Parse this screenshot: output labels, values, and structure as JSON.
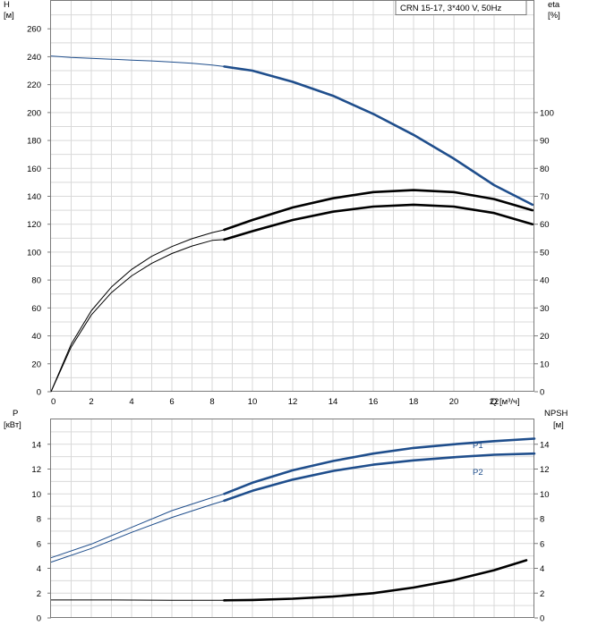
{
  "chart_data": [
    {
      "type": "line",
      "panel": "top",
      "title": "CRN 15-17, 3*400 V, 50Hz",
      "xlabel": "Q [м³/ч]",
      "ylabel_left": [
        "H",
        "[м]"
      ],
      "ylabel_right": [
        "eta",
        "[%]"
      ],
      "xlim": [
        0,
        24
      ],
      "ylim_left": [
        0,
        280
      ],
      "ylim_right": [
        0,
        140
      ],
      "x_ticks": [
        "0",
        "2",
        "4",
        "6",
        "8",
        "10",
        "12",
        "14",
        "16",
        "18",
        "20",
        "22"
      ],
      "y_ticks_left": [
        "0",
        "20",
        "40",
        "60",
        "80",
        "100",
        "120",
        "140",
        "160",
        "180",
        "200",
        "220",
        "240",
        "260"
      ],
      "y_ticks_right": [
        "0",
        "10",
        "20",
        "30",
        "40",
        "50",
        "60",
        "70",
        "80",
        "90",
        "100"
      ],
      "grid": true,
      "series": [
        {
          "id": "H",
          "axis": "left",
          "color": "#1f4e8c",
          "thin_x": [
            0,
            1,
            2,
            3,
            4,
            5,
            6,
            7,
            8,
            8.6
          ],
          "thin_y": [
            240.5,
            239.5,
            238.8,
            238.2,
            237.6,
            237,
            236.2,
            235.3,
            234,
            233
          ],
          "bold_x": [
            8.6,
            10,
            12,
            14,
            16,
            18,
            20,
            22,
            23.9
          ],
          "bold_y": [
            233,
            230,
            222,
            212,
            199,
            184,
            167,
            148,
            134
          ]
        },
        {
          "id": "eta_upper",
          "axis": "right",
          "color": "#000000",
          "thin_x": [
            0,
            1,
            2,
            3,
            4,
            5,
            6,
            7,
            8,
            8.6
          ],
          "thin_y": [
            0,
            17,
            29,
            37.5,
            43.8,
            48.5,
            52,
            54.8,
            57,
            58
          ],
          "bold_x": [
            8.6,
            10,
            12,
            14,
            16,
            18,
            20,
            22,
            23.9
          ],
          "bold_y": [
            58,
            61.5,
            66,
            69.3,
            71.5,
            72.2,
            71.5,
            69,
            65
          ]
        },
        {
          "id": "eta_lower",
          "axis": "right",
          "color": "#000000",
          "thin_x": [
            0,
            1,
            2,
            3,
            4,
            5,
            6,
            7,
            8,
            8.6
          ],
          "thin_y": [
            0,
            16,
            27.5,
            35.5,
            41.5,
            46,
            49.5,
            52.2,
            54.2,
            54.5
          ],
          "bold_x": [
            8.6,
            10,
            12,
            14,
            16,
            18,
            20,
            22,
            23.9
          ],
          "bold_y": [
            54.5,
            57.5,
            61.5,
            64.5,
            66.3,
            67,
            66.3,
            64,
            60
          ]
        }
      ]
    },
    {
      "type": "line",
      "panel": "bottom",
      "ylabel_left": [
        "P",
        "[кВт]"
      ],
      "ylabel_right": [
        "NPSH",
        "[м]"
      ],
      "xlim": [
        0,
        24
      ],
      "ylim_left": [
        0,
        16
      ],
      "ylim_right": [
        0,
        16
      ],
      "y_ticks_left": [
        "0",
        "2",
        "4",
        "6",
        "8",
        "10",
        "12",
        "14"
      ],
      "y_ticks_right": [
        "0",
        "2",
        "4",
        "6",
        "8",
        "10",
        "12",
        "14"
      ],
      "grid": true,
      "series": [
        {
          "id": "P1",
          "name": "P1",
          "axis": "left",
          "color": "#1f4e8c",
          "thin_x": [
            0,
            2,
            4,
            6,
            8,
            8.6
          ],
          "thin_y": [
            4.85,
            5.95,
            7.3,
            8.65,
            9.7,
            10
          ],
          "bold_x": [
            8.6,
            10,
            12,
            14,
            16,
            18,
            20,
            22,
            24
          ],
          "bold_y": [
            10,
            10.9,
            11.9,
            12.65,
            13.25,
            13.7,
            14,
            14.25,
            14.45
          ]
        },
        {
          "id": "P2",
          "name": "P2",
          "axis": "left",
          "color": "#1f4e8c",
          "thin_x": [
            0,
            2,
            4,
            6,
            8,
            8.6
          ],
          "thin_y": [
            4.5,
            5.6,
            6.9,
            8.1,
            9.15,
            9.45
          ],
          "bold_x": [
            8.6,
            10,
            12,
            14,
            16,
            18,
            20,
            22,
            24
          ],
          "bold_y": [
            9.45,
            10.25,
            11.15,
            11.85,
            12.35,
            12.7,
            12.95,
            13.15,
            13.25
          ]
        },
        {
          "id": "NPSH",
          "axis": "right",
          "color": "#000000",
          "thin_x": [
            0,
            3,
            6,
            8.6
          ],
          "thin_y": [
            1.45,
            1.45,
            1.43,
            1.42
          ],
          "bold_x": [
            8.6,
            10,
            12,
            14,
            16,
            18,
            20,
            22,
            23.6
          ],
          "bold_y": [
            1.42,
            1.45,
            1.55,
            1.72,
            2.0,
            2.45,
            3.05,
            3.85,
            4.65
          ]
        }
      ]
    }
  ]
}
